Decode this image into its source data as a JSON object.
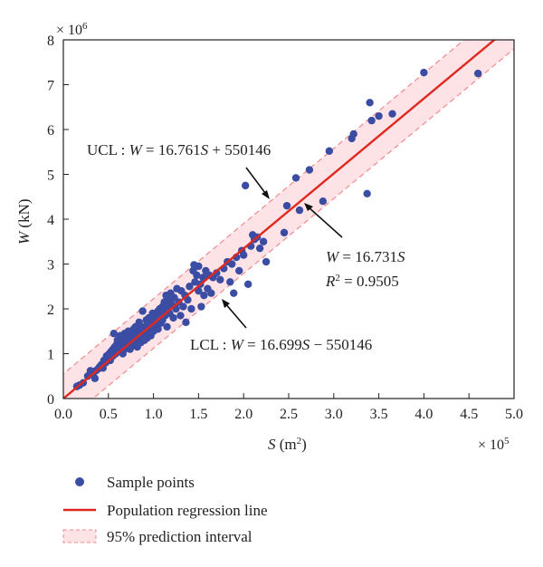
{
  "chart_data": {
    "type": "scatter",
    "xlabel": {
      "var": "S",
      "unit": "(m",
      "sup": "2",
      "close": ")"
    },
    "ylabel": {
      "var": "W",
      "unit": "(kN)"
    },
    "x_multiplier": {
      "text": "× 10",
      "exp": "5"
    },
    "y_multiplier": {
      "text": "× 10",
      "exp": "6"
    },
    "xlim": [
      0,
      5.0
    ],
    "ylim": [
      0,
      8
    ],
    "x_ticks": [
      "0.0",
      "0.5",
      "1.0",
      "1.5",
      "2.0",
      "2.5",
      "3.0",
      "3.5",
      "4.0",
      "4.5",
      "5.0"
    ],
    "y_ticks": [
      "0",
      "1",
      "2",
      "3",
      "4",
      "5",
      "6",
      "7",
      "8"
    ],
    "regression": {
      "slope": 16.731,
      "intercept": 0
    },
    "ucl": {
      "slope": 16.761,
      "intercept": 550146
    },
    "lcl": {
      "slope": 16.699,
      "intercept": -550146
    },
    "series": [
      {
        "name": "Sample points",
        "points": [
          [
            0.15,
            0.27
          ],
          [
            0.18,
            0.3
          ],
          [
            0.22,
            0.35
          ],
          [
            0.27,
            0.5
          ],
          [
            0.3,
            0.62
          ],
          [
            0.33,
            0.55
          ],
          [
            0.35,
            0.45
          ],
          [
            0.36,
            0.62
          ],
          [
            0.38,
            0.65
          ],
          [
            0.4,
            0.7
          ],
          [
            0.42,
            0.75
          ],
          [
            0.44,
            0.68
          ],
          [
            0.45,
            0.85
          ],
          [
            0.47,
            0.8
          ],
          [
            0.48,
            0.95
          ],
          [
            0.5,
            0.9
          ],
          [
            0.51,
            1.0
          ],
          [
            0.52,
            0.85
          ],
          [
            0.53,
            1.05
          ],
          [
            0.55,
            1.1
          ],
          [
            0.55,
            0.95
          ],
          [
            0.56,
            1.45
          ],
          [
            0.57,
            1.15
          ],
          [
            0.58,
            1.0
          ],
          [
            0.59,
            1.2
          ],
          [
            0.6,
            1.1
          ],
          [
            0.6,
            1.3
          ],
          [
            0.62,
            1.05
          ],
          [
            0.62,
            1.25
          ],
          [
            0.63,
            1.4
          ],
          [
            0.64,
            1.15
          ],
          [
            0.65,
            1.2
          ],
          [
            0.65,
            1.35
          ],
          [
            0.66,
            1.0
          ],
          [
            0.67,
            1.28
          ],
          [
            0.68,
            1.1
          ],
          [
            0.68,
            1.45
          ],
          [
            0.69,
            1.22
          ],
          [
            0.7,
            1.3
          ],
          [
            0.7,
            1.15
          ],
          [
            0.71,
            1.4
          ],
          [
            0.72,
            1.2
          ],
          [
            0.72,
            1.5
          ],
          [
            0.73,
            1.32
          ],
          [
            0.74,
            1.1
          ],
          [
            0.75,
            1.25
          ],
          [
            0.75,
            1.45
          ],
          [
            0.76,
            1.35
          ],
          [
            0.77,
            1.18
          ],
          [
            0.78,
            1.55
          ],
          [
            0.78,
            1.3
          ],
          [
            0.79,
            1.42
          ],
          [
            0.8,
            1.25
          ],
          [
            0.8,
            1.6
          ],
          [
            0.81,
            1.35
          ],
          [
            0.82,
            1.48
          ],
          [
            0.82,
            1.15
          ],
          [
            0.83,
            1.3
          ],
          [
            0.84,
            1.7
          ],
          [
            0.85,
            1.4
          ],
          [
            0.85,
            1.55
          ],
          [
            0.86,
            1.25
          ],
          [
            0.87,
            1.45
          ],
          [
            0.88,
            1.35
          ],
          [
            0.88,
            1.95
          ],
          [
            0.89,
            1.5
          ],
          [
            0.9,
            1.6
          ],
          [
            0.9,
            1.3
          ],
          [
            0.91,
            1.42
          ],
          [
            0.92,
            1.75
          ],
          [
            0.92,
            1.55
          ],
          [
            0.93,
            1.35
          ],
          [
            0.94,
            1.65
          ],
          [
            0.95,
            1.48
          ],
          [
            0.95,
            1.8
          ],
          [
            0.96,
            1.58
          ],
          [
            0.97,
            1.4
          ],
          [
            0.98,
            1.72
          ],
          [
            0.98,
            1.55
          ],
          [
            0.99,
            1.9
          ],
          [
            1.0,
            1.65
          ],
          [
            1.0,
            1.5
          ],
          [
            1.01,
            1.78
          ],
          [
            1.02,
            1.6
          ],
          [
            1.03,
            1.85
          ],
          [
            1.04,
            1.7
          ],
          [
            1.05,
            1.95
          ],
          [
            1.05,
            1.55
          ],
          [
            1.06,
            1.8
          ],
          [
            1.07,
            2.0
          ],
          [
            1.08,
            1.68
          ],
          [
            1.09,
            1.9
          ],
          [
            1.1,
            2.05
          ],
          [
            1.1,
            1.75
          ],
          [
            1.11,
            1.95
          ],
          [
            1.12,
            2.15
          ],
          [
            1.13,
            1.85
          ],
          [
            1.14,
            2.3
          ],
          [
            1.15,
            2.05
          ],
          [
            1.15,
            1.6
          ],
          [
            1.16,
            2.2
          ],
          [
            1.18,
            1.9
          ],
          [
            1.19,
            2.35
          ],
          [
            1.2,
            2.1
          ],
          [
            1.22,
            1.8
          ],
          [
            1.23,
            2.25
          ],
          [
            1.25,
            2.0
          ],
          [
            1.26,
            2.45
          ],
          [
            1.28,
            2.15
          ],
          [
            1.3,
            1.85
          ],
          [
            1.31,
            2.4
          ],
          [
            1.33,
            2.05
          ],
          [
            1.35,
            2.3
          ],
          [
            1.36,
            1.7
          ],
          [
            1.38,
            2.2
          ],
          [
            1.4,
            2.5
          ],
          [
            1.42,
            2.0
          ],
          [
            1.44,
            2.85
          ],
          [
            1.45,
            2.98
          ],
          [
            1.46,
            2.6
          ],
          [
            1.48,
            2.75
          ],
          [
            1.5,
            2.4
          ],
          [
            1.5,
            2.95
          ],
          [
            1.52,
            2.55
          ],
          [
            1.53,
            2.05
          ],
          [
            1.55,
            2.7
          ],
          [
            1.56,
            2.3
          ],
          [
            1.58,
            2.85
          ],
          [
            1.6,
            2.45
          ],
          [
            1.62,
            2.75
          ],
          [
            1.64,
            2.35
          ],
          [
            1.66,
            2.7
          ],
          [
            1.7,
            2.8
          ],
          [
            1.74,
            2.65
          ],
          [
            1.78,
            2.9
          ],
          [
            1.82,
            3.05
          ],
          [
            1.85,
            2.6
          ],
          [
            1.87,
            3.0
          ],
          [
            1.89,
            2.35
          ],
          [
            1.92,
            3.15
          ],
          [
            1.95,
            2.85
          ],
          [
            1.98,
            3.3
          ],
          [
            2.0,
            3.2
          ],
          [
            2.02,
            4.75
          ],
          [
            2.05,
            2.55
          ],
          [
            2.08,
            3.4
          ],
          [
            2.1,
            3.65
          ],
          [
            2.12,
            3.55
          ],
          [
            2.15,
            3.6
          ],
          [
            2.18,
            3.35
          ],
          [
            2.22,
            3.5
          ],
          [
            2.25,
            3.05
          ],
          [
            2.45,
            3.7
          ],
          [
            2.48,
            4.3
          ],
          [
            2.58,
            4.92
          ],
          [
            2.62,
            4.2
          ],
          [
            2.73,
            5.1
          ],
          [
            2.88,
            4.4
          ],
          [
            2.95,
            5.52
          ],
          [
            3.2,
            5.8
          ],
          [
            3.22,
            5.9
          ],
          [
            3.37,
            4.57
          ],
          [
            3.4,
            6.6
          ],
          [
            3.42,
            6.2
          ],
          [
            3.5,
            6.3
          ],
          [
            3.65,
            6.35
          ],
          [
            4.0,
            7.27
          ],
          [
            4.6,
            7.25
          ]
        ]
      }
    ],
    "annotations": [
      {
        "key": "ucl",
        "prefix": "UCL : ",
        "var": "W",
        "mid": " = 16.761",
        "var2": "S",
        "tail": " + 550146"
      },
      {
        "key": "reg",
        "var": "W",
        "mid": " = 16.731",
        "var2": "S"
      },
      {
        "key": "r2",
        "var": "R",
        "sup": "2",
        "tail": " = 0.9505"
      },
      {
        "key": "lcl",
        "prefix": "LCL : ",
        "var": "W",
        "mid": " = 16.699",
        "var2": "S",
        "tail": " − 550146"
      }
    ],
    "legend": [
      {
        "label": "Sample points"
      },
      {
        "label": "Population regression line"
      },
      {
        "label": "95% prediction interval"
      }
    ],
    "colors": {
      "points": "#3b4da3",
      "regression": "#e0281e",
      "band_fill": "#fde3e6",
      "band_edge": "#f08a8e",
      "axis": "#222222"
    }
  }
}
